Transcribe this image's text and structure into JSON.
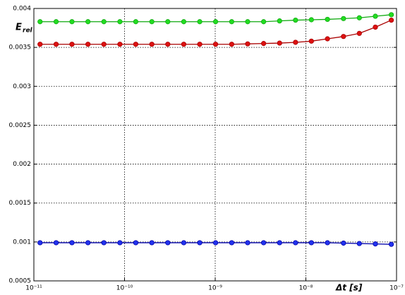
{
  "chart_data": {
    "type": "line",
    "ylabel": "E",
    "ylabel_sub": "rel",
    "xlabel": "Δt [s]",
    "log_x": true,
    "grid": true,
    "x": [
      1.17e-11,
      1.76e-11,
      2.63e-11,
      3.95e-11,
      5.92e-11,
      8.89e-11,
      1.33e-10,
      2e-10,
      3e-10,
      4.5e-10,
      6.75e-10,
      1.01e-09,
      1.52e-09,
      2.28e-09,
      3.42e-09,
      5.13e-09,
      7.69e-09,
      1.15e-08,
      1.73e-08,
      2.6e-08,
      3.89e-08,
      5.84e-08,
      8.76e-08
    ],
    "series": [
      {
        "name": "green",
        "color": "#22dd22",
        "edge": "#11aa11",
        "values": [
          0.00383,
          0.00383,
          0.00383,
          0.00383,
          0.00383,
          0.00383,
          0.00383,
          0.00383,
          0.00383,
          0.00383,
          0.00383,
          0.00383,
          0.00383,
          0.00383,
          0.00383,
          0.00384,
          0.00385,
          0.003855,
          0.00386,
          0.00387,
          0.00388,
          0.0039,
          0.00392
        ]
      },
      {
        "name": "red",
        "color": "#dd1111",
        "edge": "#aa0000",
        "values": [
          0.00354,
          0.00354,
          0.00354,
          0.00354,
          0.00354,
          0.00354,
          0.00354,
          0.00354,
          0.00354,
          0.00354,
          0.00354,
          0.00354,
          0.00354,
          0.003545,
          0.00355,
          0.003555,
          0.003565,
          0.00358,
          0.00361,
          0.00364,
          0.00368,
          0.00376,
          0.00385
        ]
      },
      {
        "name": "blue",
        "color": "#2233ee",
        "edge": "#0000aa",
        "values": [
          0.00099,
          0.00099,
          0.00099,
          0.00099,
          0.00099,
          0.00099,
          0.00099,
          0.00099,
          0.00099,
          0.00099,
          0.00099,
          0.00099,
          0.00099,
          0.00099,
          0.00099,
          0.00099,
          0.00099,
          0.00099,
          0.00099,
          0.000985,
          0.00098,
          0.000975,
          0.00097
        ]
      }
    ],
    "xlim": [
      1e-11,
      1e-07
    ],
    "xticks": [
      {
        "value": 1e-11,
        "label": "10⁻¹¹"
      },
      {
        "value": 1e-10,
        "label": "10⁻¹⁰"
      },
      {
        "value": 1e-09,
        "label": "10⁻⁹"
      },
      {
        "value": 1e-08,
        "label": "10⁻⁸"
      },
      {
        "value": 1e-07,
        "label": "10⁻⁷"
      }
    ],
    "ylim": [
      0.0005,
      0.004
    ],
    "yticks": [
      0.0005,
      0.001,
      0.0015,
      0.002,
      0.0025,
      0.003,
      0.0035,
      0.004
    ]
  }
}
